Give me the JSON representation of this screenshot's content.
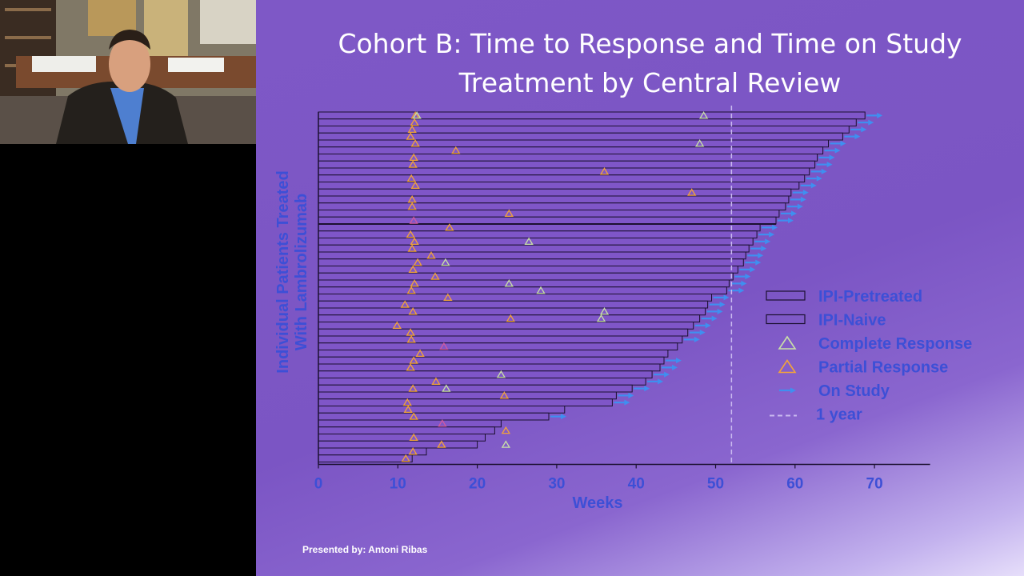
{
  "slide": {
    "title_line1": "Cohort B: Time to Response and Time on Study",
    "title_line2": "Treatment by Central Review",
    "presenter": "Presented by: Antoni Ribas"
  },
  "colors": {
    "bar_fill": "#7f56c8",
    "bar_stroke": "#1b1030",
    "axis": "#1b1030",
    "complete_response": "#c9e0a8",
    "partial_response": "#f2a33a",
    "other_marker": "#d05aa0",
    "on_study_arrow": "#3f8ff0",
    "year_line": "#c9b8ef",
    "axis_text": "#3d4fd6"
  },
  "chart_data": {
    "type": "swimmer",
    "title": "Cohort B: Time to Response and Time on Study Treatment by Central Review",
    "xlabel": "Weeks",
    "ylabel_line1": "Individual Patients Treated",
    "ylabel_line2": "With Lambrolizumab",
    "xlim": [
      0,
      77
    ],
    "xticks": [
      0,
      10,
      20,
      30,
      40,
      50,
      60,
      70
    ],
    "one_year_week": 52,
    "legend_position": "right",
    "legend": [
      {
        "key": "pretreated",
        "label": "IPI-Pretreated"
      },
      {
        "key": "naive",
        "label": "IPI-Naive"
      },
      {
        "key": "cr",
        "label": "Complete Response"
      },
      {
        "key": "pr",
        "label": "Partial Response"
      },
      {
        "key": "onstudy",
        "label": "On Study"
      },
      {
        "key": "year",
        "label": "1 year"
      }
    ],
    "patients": [
      {
        "group": "pretreated",
        "weeks": 68.8,
        "on_study": true,
        "cr": [
          12.4,
          48.5
        ],
        "pr": [
          12.2
        ]
      },
      {
        "group": "pretreated",
        "weeks": 67.7,
        "on_study": true,
        "pr": [
          12.1
        ]
      },
      {
        "group": "pretreated",
        "weeks": 66.8,
        "on_study": true,
        "pr": [
          11.8
        ]
      },
      {
        "group": "pretreated",
        "weeks": 66.0,
        "on_study": true,
        "pr": [
          11.6
        ]
      },
      {
        "group": "pretreated",
        "weeks": 64.2,
        "on_study": true,
        "pr": [
          12.2
        ],
        "cr": [
          48.0
        ]
      },
      {
        "group": "pretreated",
        "weeks": 63.5,
        "on_study": true,
        "pr": [
          17.3
        ]
      },
      {
        "group": "pretreated",
        "weeks": 62.8,
        "on_study": true,
        "pr": [
          12.0
        ]
      },
      {
        "group": "pretreated",
        "weeks": 62.5,
        "on_study": true,
        "pr": [
          11.9
        ]
      },
      {
        "group": "pretreated",
        "weeks": 61.8,
        "on_study": true,
        "pr": [
          36.0
        ]
      },
      {
        "group": "pretreated",
        "weeks": 61.2,
        "on_study": true,
        "pr": [
          11.7
        ]
      },
      {
        "group": "pretreated",
        "weeks": 60.5,
        "on_study": true,
        "pr": [
          12.2
        ]
      },
      {
        "group": "pretreated",
        "weeks": 59.5,
        "on_study": true,
        "pr": [
          47.0
        ]
      },
      {
        "group": "pretreated",
        "weeks": 59.2,
        "on_study": true,
        "pr": [
          11.8
        ]
      },
      {
        "group": "pretreated",
        "weeks": 58.8,
        "on_study": true,
        "pr": [
          11.8
        ]
      },
      {
        "group": "pretreated",
        "weeks": 58.0,
        "on_study": true,
        "pr": [
          24.0
        ]
      },
      {
        "group": "pretreated",
        "weeks": 57.6,
        "on_study": true,
        "other": [
          12.0
        ]
      },
      {
        "group": "naive",
        "weeks": 55.6,
        "on_study": true,
        "pr": [
          16.5
        ]
      },
      {
        "group": "naive",
        "weeks": 55.2,
        "on_study": true,
        "pr": [
          11.6
        ]
      },
      {
        "group": "naive",
        "weeks": 54.7,
        "on_study": true,
        "pr": [
          12.1
        ],
        "cr": [
          26.5
        ]
      },
      {
        "group": "naive",
        "weeks": 54.2,
        "on_study": true,
        "pr": [
          11.8
        ]
      },
      {
        "group": "naive",
        "weeks": 53.8,
        "on_study": true,
        "pr": [
          14.2
        ]
      },
      {
        "group": "naive",
        "weeks": 53.5,
        "on_study": true,
        "pr": [
          12.5
        ],
        "cr": [
          16.0
        ]
      },
      {
        "group": "naive",
        "weeks": 52.8,
        "on_study": true,
        "pr": [
          11.9
        ]
      },
      {
        "group": "naive",
        "weeks": 52.2,
        "on_study": true,
        "pr": [
          14.7
        ]
      },
      {
        "group": "naive",
        "weeks": 51.7,
        "on_study": true,
        "pr": [
          12.1
        ],
        "cr": [
          24.0
        ]
      },
      {
        "group": "naive",
        "weeks": 51.4,
        "on_study": true,
        "pr": [
          11.7
        ],
        "cr": [
          28.0
        ]
      },
      {
        "group": "naive",
        "weeks": 49.5,
        "on_study": true,
        "pr": [
          16.3
        ]
      },
      {
        "group": "naive",
        "weeks": 49.0,
        "on_study": true,
        "pr": [
          10.9
        ]
      },
      {
        "group": "naive",
        "weeks": 48.7,
        "on_study": true,
        "pr": [
          11.9
        ],
        "cr": [
          36.0
        ]
      },
      {
        "group": "naive",
        "weeks": 48.0,
        "on_study": true,
        "pr": [
          24.2
        ],
        "cr": [
          35.6
        ]
      },
      {
        "group": "naive",
        "weeks": 47.2,
        "on_study": true,
        "pr": [
          9.9
        ]
      },
      {
        "group": "naive",
        "weeks": 46.5,
        "on_study": true,
        "pr": [
          11.6
        ]
      },
      {
        "group": "naive",
        "weeks": 45.8,
        "on_study": true,
        "pr": [
          11.7
        ]
      },
      {
        "group": "naive",
        "weeks": 45.2,
        "on_study": false,
        "other": [
          15.8
        ]
      },
      {
        "group": "naive",
        "weeks": 44.0,
        "on_study": false,
        "pr": [
          12.8
        ]
      },
      {
        "group": "naive",
        "weeks": 43.5,
        "on_study": true,
        "pr": [
          12.0
        ]
      },
      {
        "group": "naive",
        "weeks": 43.0,
        "on_study": true,
        "pr": [
          11.6
        ]
      },
      {
        "group": "naive",
        "weeks": 42.0,
        "on_study": true,
        "cr": [
          23.0
        ]
      },
      {
        "group": "naive",
        "weeks": 41.2,
        "on_study": true,
        "pr": [
          14.8
        ]
      },
      {
        "group": "naive",
        "weeks": 39.5,
        "on_study": true,
        "pr": [
          11.9
        ],
        "cr": [
          16.1
        ]
      },
      {
        "group": "naive",
        "weeks": 37.5,
        "on_study": true,
        "pr": [
          23.4
        ]
      },
      {
        "group": "naive",
        "weeks": 37.0,
        "on_study": true,
        "pr": [
          11.2
        ]
      },
      {
        "group": "naive",
        "weeks": 31.0,
        "on_study": false,
        "pr": [
          11.3
        ]
      },
      {
        "group": "naive",
        "weeks": 29.0,
        "on_study": true,
        "pr": [
          12.0
        ]
      },
      {
        "group": "naive",
        "weeks": 23.0,
        "on_study": false,
        "other": [
          15.6
        ]
      },
      {
        "group": "naive",
        "weeks": 22.2,
        "on_study": false,
        "pr": [
          23.6
        ]
      },
      {
        "group": "naive",
        "weeks": 21.0,
        "on_study": false,
        "pr": [
          12.0
        ]
      },
      {
        "group": "naive",
        "weeks": 20.0,
        "on_study": false,
        "pr": [
          15.5
        ],
        "cr": [
          23.6
        ]
      },
      {
        "group": "naive",
        "weeks": 13.6,
        "on_study": false,
        "pr": [
          11.9
        ]
      },
      {
        "group": "naive",
        "weeks": 11.8,
        "on_study": false,
        "pr": [
          11.0
        ]
      }
    ]
  }
}
